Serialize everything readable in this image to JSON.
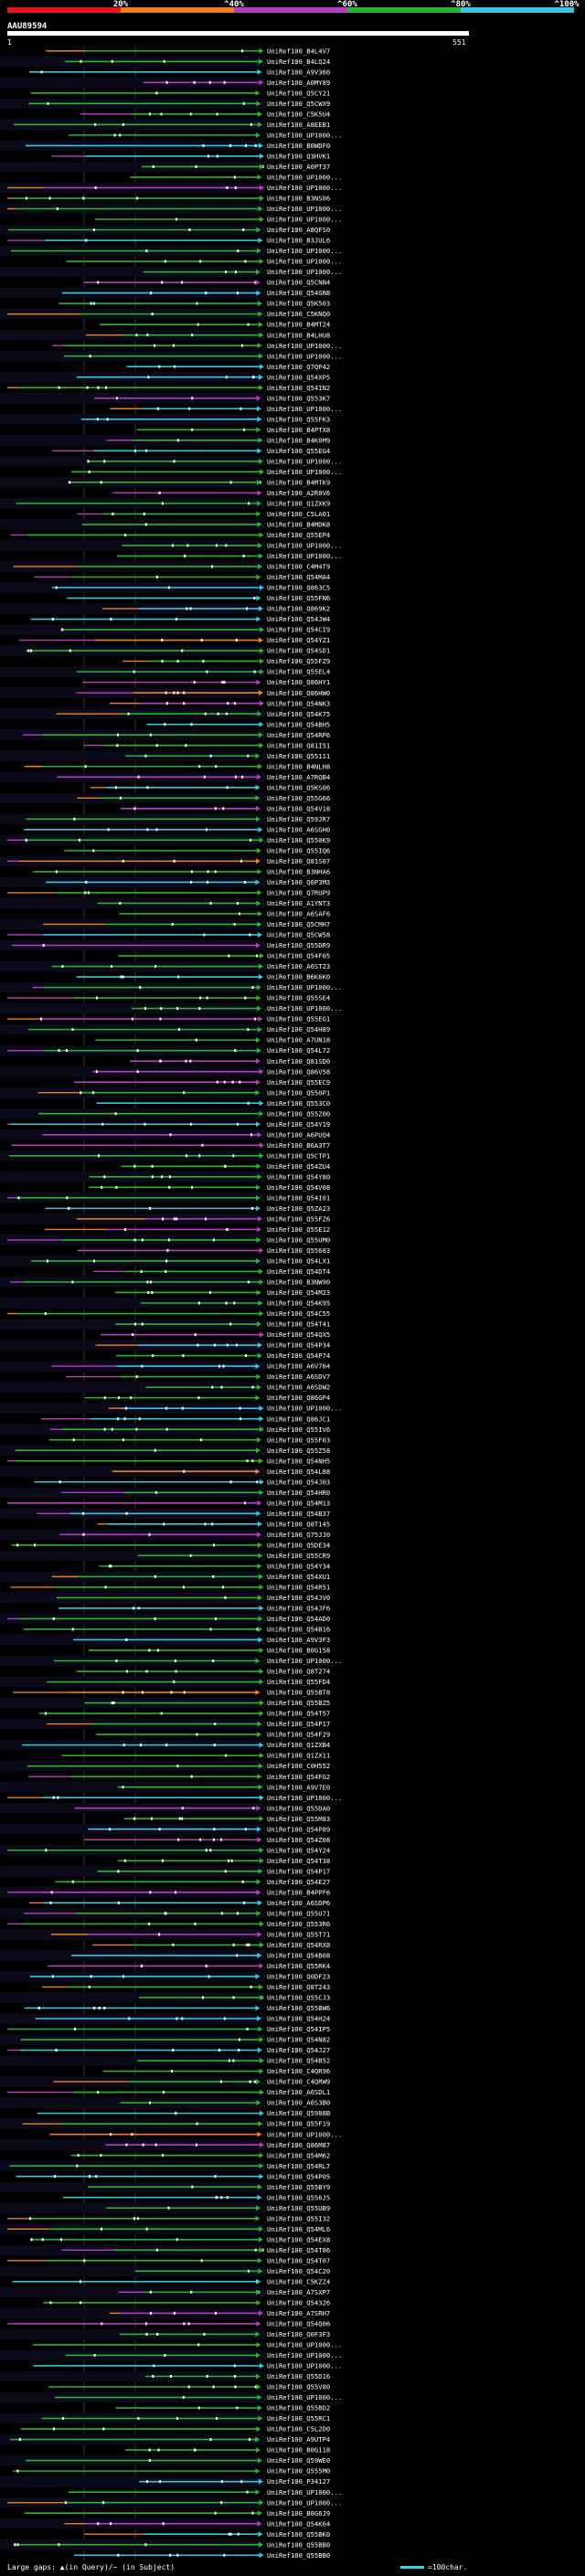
{
  "legend": {
    "ticks": [
      "20%",
      "^40%",
      "^60%",
      "^80%",
      "^100%"
    ],
    "colors": [
      "#e8141c",
      "#f07f1e",
      "#b63dbf",
      "#2bb32b",
      "#38c6dd"
    ]
  },
  "query": {
    "id": "AAU89594",
    "start": "1",
    "end": "551"
  },
  "footer": {
    "large_gaps": "Large gaps: ▲(in Query)/~ (in Subject)",
    "scale": "=100char."
  },
  "chart_data": {
    "type": "alignment-overview",
    "title": "AAU89594",
    "query_length": 551,
    "identity_bins": [
      "<20%",
      "20-40%",
      "40-60%",
      "60-80%",
      "80-100%"
    ],
    "hits": [
      "UniRef100_B4L4V7",
      "UniRef100_B4LQ24",
      "UniRef100_A9V360",
      "UniRef100_A0MY89",
      "UniRef100_Q5CY21",
      "UniRef100_Q5CWX9",
      "UniRef100_C5K5U4",
      "UniRef100_A8EEB1",
      "UniRef100_UP1000...",
      "UniRef100_B0WDF0",
      "UniRef100_Q3HVK1",
      "UniRef100_A0PT37",
      "UniRef100_UP1000...",
      "UniRef100_UP1000...",
      "UniRef100_B3NS06",
      "UniRef100_UP1000...",
      "UniRef100_UP1000...",
      "UniRef100_A8QFS0",
      "UniRef100_B3JUL6",
      "UniRef100_UP1000...",
      "UniRef100_UP1000...",
      "UniRef100_UP1000...",
      "UniRef100_Q5CNN4",
      "UniRef100_Q54GN8",
      "UniRef100_Q5K503",
      "UniRef100_C5KNQ0",
      "UniRef100_B4MT24",
      "UniRef100_B4LHU8",
      "UniRef100_UP1000...",
      "UniRef100_UP1000...",
      "UniRef100_Q7QP42",
      "UniRef100_Q54XP5",
      "UniRef100_Q54IN2",
      "UniRef100_Q553K7",
      "UniRef100_UP1000...",
      "UniRef100_Q55FK3",
      "UniRef100_B4PTX8",
      "UniRef100_B4K0M9",
      "UniRef100_Q55EG4",
      "UniRef100_UP1000...",
      "UniRef100_UP1000...",
      "UniRef100_B4MTK9",
      "UniRef100_A2R0V6",
      "UniRef100_Q1ZXK9",
      "UniRef100_C5LA01",
      "UniRef100_B4MDK8",
      "UniRef100_Q55EP4",
      "UniRef100_UP1000...",
      "UniRef100_UP1000...",
      "UniRef100_C4M4T9",
      "UniRef100_Q54MA4",
      "UniRef100_Q863C5",
      "UniRef100_Q55FN6",
      "UniRef100_Q869K2",
      "UniRef100_Q54JW4",
      "UniRef100_Q54CI9",
      "UniRef100_Q54YZ1",
      "UniRef100_Q54SD1",
      "UniRef100_Q55FZ9",
      "UniRef100_Q55EL4",
      "UniRef100_Q86HY1",
      "UniRef100_Q86HW0",
      "UniRef100_Q54NK3",
      "UniRef100_Q54K75",
      "UniRef100_Q54BH5",
      "UniRef100_Q54RP6",
      "UniRef100_Q81I51",
      "UniRef100_Q55111",
      "UniRef100_B4NLH8",
      "UniRef100_A7RQB4",
      "UniRef100_Q5KS06",
      "UniRef100_Q55G66",
      "UniRef100_Q54V18",
      "UniRef100_Q59JR7",
      "UniRef100_A6SGH0",
      "UniRef100_Q550K9",
      "UniRef100_Q55IQ6",
      "UniRef100_Q81S07",
      "UniRef100_B3NHA6",
      "UniRef100_Q0P3M3",
      "UniRef100_Q7RUP9",
      "UniRef100_A1YNT3",
      "UniRef100_A6SAF6",
      "UniRef100_Q5CMH7",
      "UniRef100_Q5CW58",
      "UniRef100_Q55DR9",
      "UniRef100_Q54F05",
      "UniRef100_A6ST23",
      "UniRef100_B6K6K0",
      "UniRef100_UP1000...",
      "UniRef100_Q55SE4",
      "UniRef100_UP1000...",
      "UniRef100_Q55EG1",
      "UniRef100_Q54H89",
      "UniRef100_A7UN18",
      "UniRef100_Q54L72",
      "UniRef100_Q81SD0",
      "UniRef100_Q86V58",
      "UniRef100_Q55EC9",
      "UniRef100_Q550P1",
      "UniRef100_Q553C0",
      "UniRef100_Q55Z00",
      "UniRef100_Q54Y19",
      "UniRef100_A6PUQ4",
      "UniRef100_B6A3T7",
      "UniRef100_Q5CTP1",
      "UniRef100_Q54ZU4",
      "UniRef100_Q54Y80",
      "UniRef100_Q54V08",
      "UniRef100_Q54I01",
      "UniRef100_Q5ZA23",
      "UniRef100_Q55FZ6",
      "UniRef100_Q55E12",
      "UniRef100_Q55UM0",
      "UniRef100_Q55683",
      "UniRef100_Q54LX1",
      "UniRef100_Q54DT4",
      "UniRef100_B3NW90",
      "UniRef100_Q54M23",
      "UniRef100_Q54K95",
      "UniRef100_Q54C55",
      "UniRef100_Q54T41",
      "UniRef100_Q54QX5",
      "UniRef100_Q54P34",
      "UniRef100_Q54P74",
      "UniRef100_A6V764",
      "UniRef100_A6SDV7",
      "UniRef100_A6SDW2",
      "UniRef100_Q86GP4",
      "UniRef100_UP1000...",
      "UniRef100_Q86JC1",
      "UniRef100_Q55IV6",
      "UniRef100_Q55F03",
      "UniRef100_Q55Z58",
      "UniRef100_Q54NH5",
      "UniRef100_Q54L88",
      "UniRef100_Q54J03",
      "UniRef100_Q54HR0",
      "UniRef100_Q54M13",
      "UniRef100_Q54B37",
      "UniRef100_Q8T145",
      "UniRef100_Q75JJ0",
      "UniRef100_Q5DE34",
      "UniRef100_Q55CR9",
      "UniRef100_Q54Y34",
      "UniRef100_Q54XU1",
      "UniRef100_Q54R51",
      "UniRef100_Q54JV0",
      "UniRef100_Q54JF6",
      "UniRef100_Q54AD0",
      "UniRef100_Q54B16",
      "UniRef100_A9V3F3",
      "UniRef100_B0G158",
      "UniRef100_UP1000...",
      "UniRef100_Q8T274",
      "UniRef100_Q55FD4",
      "UniRef100_Q55BT8",
      "UniRef100_Q55BZ5",
      "UniRef100_Q54T57",
      "UniRef100_Q54P17",
      "UniRef100_Q54F29",
      "UniRef100_Q1ZXB4",
      "UniRef100_Q1ZX11",
      "UniRef100_C0H552",
      "UniRef100_Q54FG2",
      "UniRef100_A9V7E0",
      "UniRef100_UP1000...",
      "UniRef100_Q55DA0",
      "UniRef100_Q55M83",
      "UniRef100_Q54P89",
      "UniRef100_Q54Z08",
      "UniRef100_Q54Y24",
      "UniRef100_Q54T38",
      "UniRef100_Q54P17",
      "UniRef100_Q54E27",
      "UniRef100_B4PPF6",
      "UniRef100_A6SDP6",
      "UniRef100_Q55U71",
      "UniRef100_Q553R6",
      "UniRef100_Q55T71",
      "UniRef100_Q54RX8",
      "UniRef100_Q54B08",
      "UniRef100_Q55RK4",
      "UniRef100_Q0DF23",
      "UniRef100_Q8T243",
      "UniRef100_Q55CJ3",
      "UniRef100_Q55BW6",
      "UniRef100_Q54H24",
      "UniRef100_Q54IP5",
      "UniRef100_Q54N82",
      "UniRef100_Q54J27",
      "UniRef100_Q54B52",
      "UniRef100_C4QR96",
      "UniRef100_C4QRW9",
      "UniRef100_A6SDL1",
      "UniRef100_A6S3B0",
      "UniRef100_Q5988B",
      "UniRef100_Q55F19",
      "UniRef100_UP1000...",
      "UniRef100_Q86M87",
      "UniRef100_Q54M62",
      "UniRef100_Q54RL7",
      "UniRef100_Q54P05",
      "UniRef100_Q55BY9",
      "UniRef100_Q556J5",
      "UniRef100_Q55UB9",
      "UniRef100_Q55I32",
      "UniRef100_Q54ML6",
      "UniRef100_Q54EX8",
      "UniRef100_Q54T86",
      "UniRef100_Q54T07",
      "UniRef100_Q54C20",
      "UniRef100_C5KZZ4",
      "UniRef100_A7SXP7",
      "UniRef100_Q54326",
      "UniRef100_A7SRH7",
      "UniRef100_Q54Q06",
      "UniRef100_Q0F3F3",
      "UniRef100_UP1000...",
      "UniRef100_UP1000...",
      "UniRef100_UP1000...",
      "UniRef100_Q55D16",
      "UniRef100_Q55V80",
      "UniRef100_UP1000...",
      "UniRef100_Q55BD2",
      "UniRef100_Q55RC1",
      "UniRef100_C5L2D0",
      "UniRef100_A9UTP4",
      "UniRef100_B0G118",
      "UniRef100_Q59WE0",
      "UniRef100_Q555M0",
      "UniRef100_P34127",
      "UniRef100_UP1000...",
      "UniRef100_UP1000...",
      "UniRef100_B0G6J9",
      "UniRef100_Q54K64",
      "UniRef100_Q55BK0",
      "UniRef100_Q55BB0",
      "UniRef100_Q55BB0"
    ]
  }
}
